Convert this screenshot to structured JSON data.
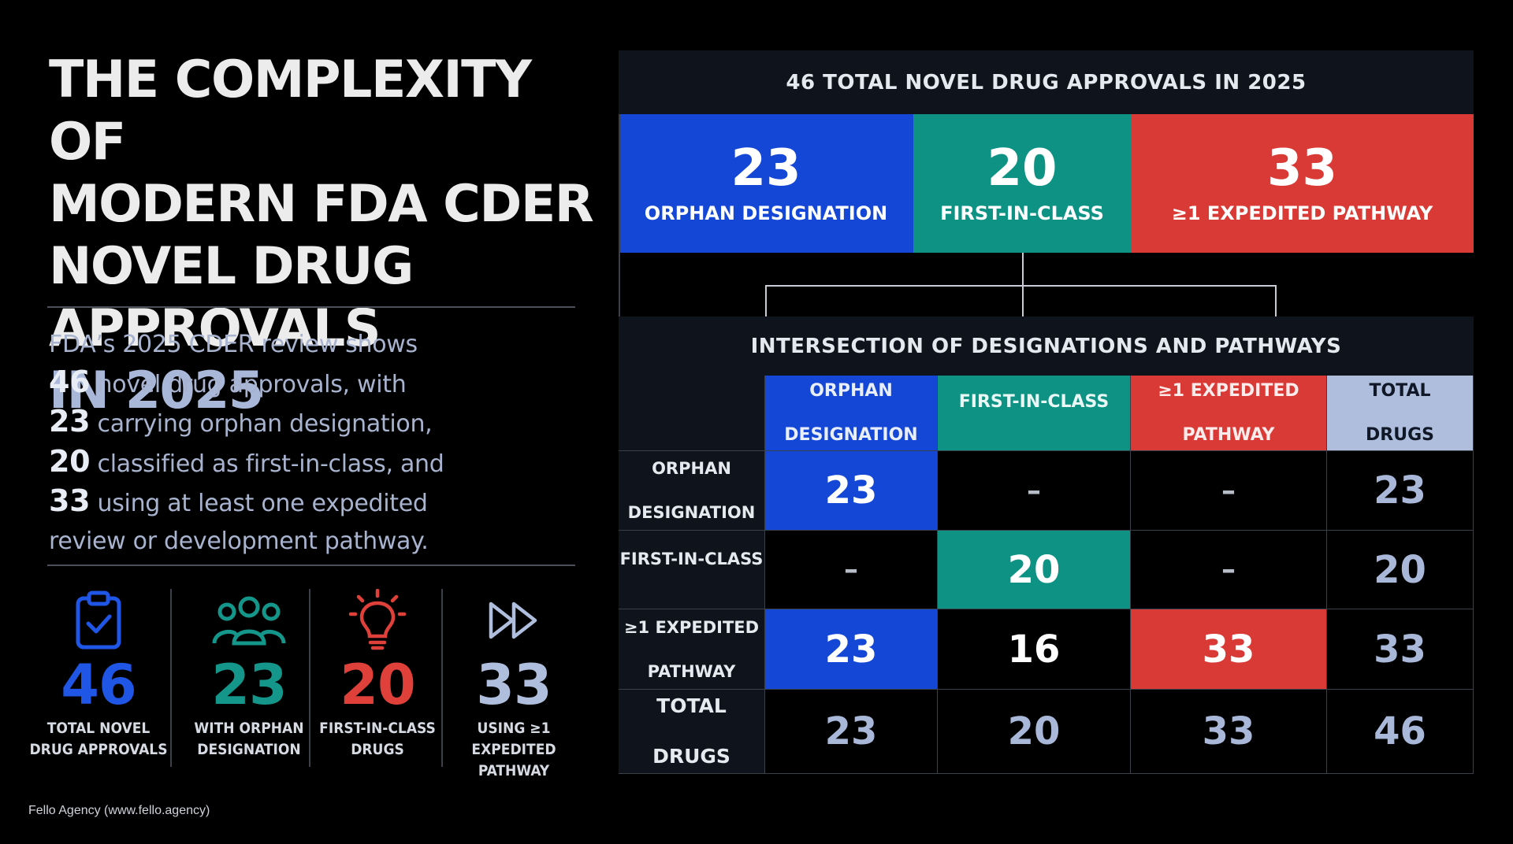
{
  "title": {
    "line1": "THE COMPLEXITY OF",
    "line2": "MODERN FDA CDER",
    "line3": "NOVEL DRUG APPROVALS",
    "line4": "IN 2025"
  },
  "summary": {
    "p1": "FDA’s 2025 CDER review shows",
    "n1": "46",
    "p2": " novel drug approvals, with",
    "n2": "23",
    "p3": " carrying orphan designation,",
    "n3": "20",
    "p4": " classified as first-in-class, and",
    "n4": "33",
    "p5": " using at least one expedited",
    "p6": "review or development pathway."
  },
  "stats": [
    {
      "icon": "clipboard-check-icon",
      "value": "46",
      "label1": "TOTAL NOVEL",
      "label2": "DRUG APPROVALS",
      "color": "#1f56e6"
    },
    {
      "icon": "people-group-icon",
      "value": "23",
      "label1": "WITH ORPHAN",
      "label2": "DESIGNATION",
      "color": "#14968a"
    },
    {
      "icon": "lightbulb-icon",
      "value": "20",
      "label1": "FIRST-IN-CLASS",
      "label2": "DRUGS",
      "color": "#e0403a"
    },
    {
      "icon": "fast-forward-icon",
      "value": "33",
      "label1": "USING ≥1 EXPEDITED",
      "label2": "PATHWAY",
      "color": "#b0bedd"
    }
  ],
  "footer": "Fello Agency (www.fello.agency)",
  "panel": {
    "header": "46 TOTAL NOVEL DRUG APPROVALS IN 2025",
    "kpis": [
      {
        "value": "23",
        "label": "ORPHAN DESIGNATION",
        "color": "#1447d6"
      },
      {
        "value": "20",
        "label": "FIRST-IN-CLASS",
        "color": "#0d9284"
      },
      {
        "value": "33",
        "label": "≥1 EXPEDITED PATHWAY",
        "color": "#d93a36"
      }
    ],
    "subheader": "INTERSECTION OF DESIGNATIONS AND PATHWAYS",
    "matrix": {
      "cols": [
        "ORPHAN DESIGNATION",
        "FIRST-IN-CLASS",
        "≥1 EXPEDITED PATHWAY",
        "TOTAL DRUGS"
      ],
      "col_lines": [
        [
          "ORPHAN",
          "DESIGNATION"
        ],
        [
          "FIRST-IN-CLASS",
          ""
        ],
        [
          "≥1 EXPEDITED",
          "PATHWAY"
        ],
        [
          "TOTAL",
          "DRUGS"
        ]
      ],
      "col_colors": [
        "#1447d6",
        "#0d9284",
        "#d93a36",
        "#b0bedd"
      ],
      "col_text_colors": [
        "#e9eefc",
        "#e9f7f5",
        "#fdeceb",
        "#101828"
      ],
      "rows": [
        {
          "lines": [
            "ORPHAN",
            "DESIGNATION"
          ],
          "cells": [
            "23",
            "–",
            "–",
            "23"
          ]
        },
        {
          "lines": [
            "FIRST-IN-CLASS",
            ""
          ],
          "cells": [
            "–",
            "20",
            "–",
            "20"
          ]
        },
        {
          "lines": [
            "≥1 EXPEDITED",
            "PATHWAY"
          ],
          "cells": [
            "23",
            "16",
            "33",
            "33"
          ]
        },
        {
          "lines": [
            "TOTAL",
            "DRUGS"
          ],
          "cells": [
            "23",
            "20",
            "33",
            "46"
          ]
        }
      ],
      "highlight": [
        [
          0,
          0,
          "#1447d6"
        ],
        [
          1,
          1,
          "#0d9284"
        ],
        [
          2,
          0,
          "#1447d6"
        ],
        [
          2,
          2,
          "#d93a36"
        ]
      ]
    }
  }
}
